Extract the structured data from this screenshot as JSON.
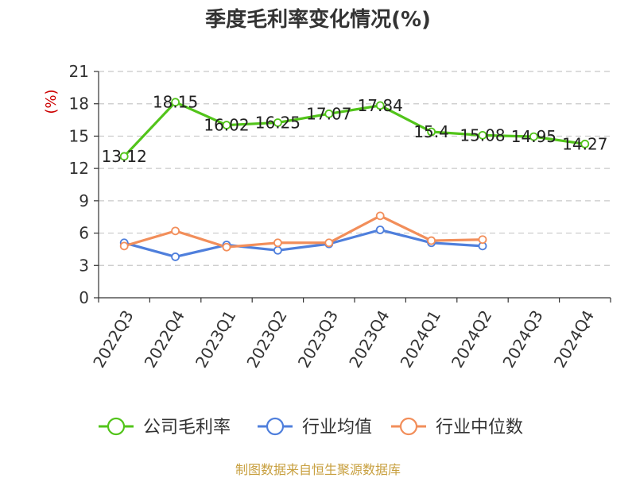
{
  "chart_data": {
    "type": "line",
    "title": "季度毛利率变化情况(%)",
    "ylabel": "(%)",
    "categories": [
      "2022Q3",
      "2022Q4",
      "2023Q1",
      "2023Q2",
      "2023Q3",
      "2023Q4",
      "2024Q1",
      "2024Q2",
      "2024Q3",
      "2024Q4"
    ],
    "ylim": [
      0,
      21
    ],
    "yticks": [
      0,
      3,
      6,
      9,
      12,
      15,
      18,
      21
    ],
    "grid": true,
    "legend_position": "bottom",
    "series": [
      {
        "name": "公司毛利率",
        "color": "#52c41a",
        "values": [
          13.12,
          18.15,
          16.02,
          16.25,
          17.07,
          17.84,
          15.4,
          15.08,
          14.95,
          14.27
        ],
        "labels": [
          "13.12",
          "18.15",
          "16.02",
          "16.25",
          "17.07",
          "17.84",
          "15.4",
          "15.08",
          "14.95",
          "14.27"
        ]
      },
      {
        "name": "行业均值",
        "color": "#4f7fdc",
        "values": [
          5.1,
          3.8,
          4.9,
          4.4,
          5.0,
          6.3,
          5.1,
          4.8,
          null,
          null
        ]
      },
      {
        "name": "行业中位数",
        "color": "#f28e5a",
        "values": [
          4.8,
          6.2,
          4.7,
          5.1,
          5.1,
          7.6,
          5.3,
          5.4,
          null,
          null
        ]
      }
    ]
  },
  "source_text": "制图数据来自恒生聚源数据库"
}
